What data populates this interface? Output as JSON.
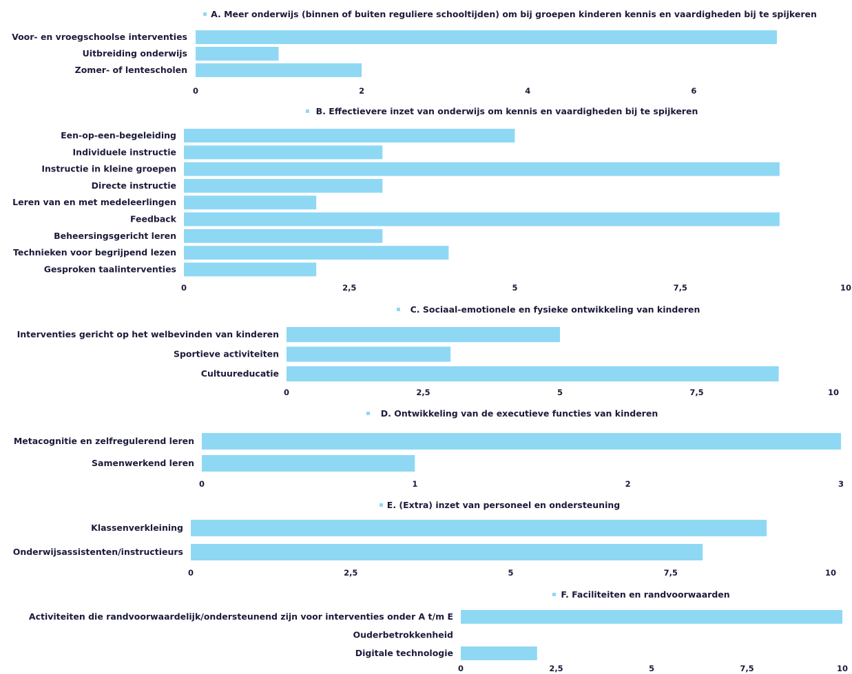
{
  "colors": {
    "bar": "#8fd8f4",
    "text": "#1b1b3a",
    "background": "#ffffff"
  },
  "chart_data": [
    {
      "type": "bar",
      "orientation": "horizontal",
      "title": "A. Meer onderwijs (binnen of buiten reguliere schooltijden) om bij groepen kinderen kennis en vaardigheden bij te spijkeren",
      "categories": [
        "Voor- en vroegschoolse interventies",
        "Uitbreiding onderwijs",
        "Zomer- of lentescholen"
      ],
      "values": [
        7,
        1,
        2
      ],
      "xlim": [
        0,
        7
      ],
      "xticks": [
        "0",
        "2",
        "4",
        "6"
      ],
      "xtick_values": [
        0,
        2,
        4,
        6
      ],
      "grid": false,
      "legend": "top"
    },
    {
      "type": "bar",
      "orientation": "horizontal",
      "title": "B. Effectievere inzet van onderwijs om kennis en vaardigheden bij te spijkeren",
      "categories": [
        "Een-op-een-begeleiding",
        "Individuele instructie",
        "Instructie in kleine groepen",
        "Directe instructie",
        "Leren van en met medeleerlingen",
        "Feedback",
        "Beheersingsgericht leren",
        "Technieken voor begrijpend lezen",
        "Gesproken taalinterventies"
      ],
      "values": [
        5,
        3,
        9,
        3,
        2,
        9,
        3,
        4,
        2
      ],
      "xlim": [
        0,
        10
      ],
      "xticks": [
        "0",
        "2,5",
        "5",
        "7,5",
        "10"
      ],
      "xtick_values": [
        0,
        2.5,
        5,
        7.5,
        10
      ],
      "grid": false,
      "legend": "top"
    },
    {
      "type": "bar",
      "orientation": "horizontal",
      "title": "C. Sociaal-emotionele en fysieke ontwikkeling van kinderen",
      "categories": [
        "Interventies gericht op het welbevinden van kinderen",
        "Sportieve activiteiten",
        "Cultuureducatie"
      ],
      "values": [
        5,
        3,
        9
      ],
      "xlim": [
        0,
        10
      ],
      "xticks": [
        "0",
        "2,5",
        "5",
        "7,5",
        "10"
      ],
      "xtick_values": [
        0,
        2.5,
        5,
        7.5,
        10
      ],
      "grid": false,
      "legend": "top"
    },
    {
      "type": "bar",
      "orientation": "horizontal",
      "title": "D. Ontwikkeling van de executieve functies van kinderen",
      "categories": [
        "Metacognitie en zelfregulerend leren",
        "Samenwerkend leren"
      ],
      "values": [
        3,
        1
      ],
      "xlim": [
        0,
        3
      ],
      "xticks": [
        "0",
        "1",
        "2",
        "3"
      ],
      "xtick_values": [
        0,
        1,
        2,
        3
      ],
      "grid": false,
      "legend": "top"
    },
    {
      "type": "bar",
      "orientation": "horizontal",
      "title": "E. (Extra) inzet van personeel en ondersteuning",
      "categories": [
        "Klassenverkleining",
        "Onderwijsassistenten/instructieurs"
      ],
      "values": [
        9,
        8
      ],
      "xlim": [
        0,
        10
      ],
      "xticks": [
        "0",
        "2,5",
        "5",
        "7,5",
        "10"
      ],
      "xtick_values": [
        0,
        2.5,
        5,
        7.5,
        10
      ],
      "grid": false,
      "legend": "top"
    },
    {
      "type": "bar",
      "orientation": "horizontal",
      "title": "F. Faciliteiten en randvoorwaarden",
      "categories": [
        "Activiteiten die randvoorwaardelijk/ondersteunend zijn voor interventies onder A t/m E",
        "Ouderbetrokkenheid",
        "Digitale technologie"
      ],
      "values": [
        10,
        0,
        2
      ],
      "xlim": [
        0,
        10
      ],
      "xticks": [
        "0",
        "2,5",
        "5",
        "7,5",
        "10"
      ],
      "xtick_values": [
        0,
        2.5,
        5,
        7.5,
        10
      ],
      "grid": false,
      "legend": "top"
    }
  ]
}
